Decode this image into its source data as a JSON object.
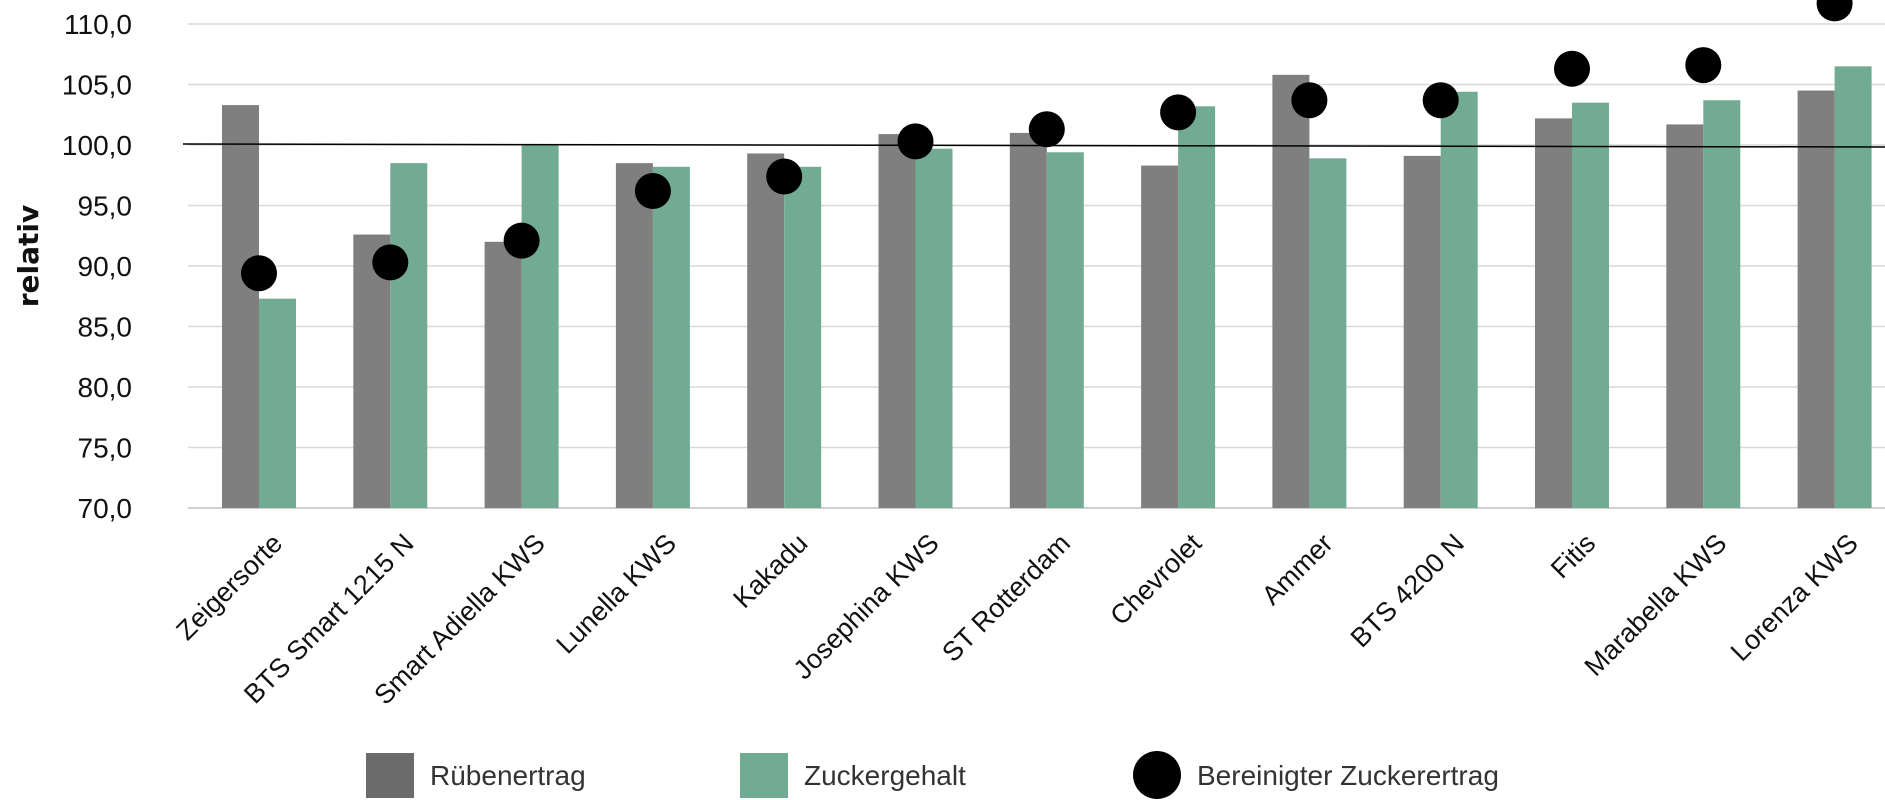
{
  "chart_data": {
    "type": "bar",
    "ylabel": "relativ",
    "ylim": [
      70,
      110
    ],
    "ytick_step": 5,
    "yticks": [
      "70,0",
      "75,0",
      "80,0",
      "85,0",
      "90,0",
      "95,0",
      "100,0",
      "105,0",
      "110,0"
    ],
    "grid": true,
    "reference_line": 100,
    "legend_position": "bottom",
    "categories": [
      "Zeigersorte",
      "BTS Smart 1215 N",
      "Smart Adiella KWS",
      "Lunella KWS",
      "Kakadu",
      "Josephina KWS",
      "ST Rotterdam",
      "Chevrolet",
      "Ammer",
      "BTS 4200 N",
      "Fitis",
      "Marabella KWS",
      "Lorenza KWS"
    ],
    "series": [
      {
        "name": "Rübenertrag",
        "kind": "bar",
        "color": "#7f7f7f",
        "values": [
          103.3,
          92.6,
          92.0,
          98.5,
          99.3,
          100.9,
          101.0,
          98.3,
          105.8,
          99.1,
          102.2,
          101.7,
          104.5
        ]
      },
      {
        "name": "Zuckergehalt",
        "kind": "bar",
        "color": "#72ab93",
        "values": [
          87.3,
          98.5,
          100.0,
          98.2,
          98.2,
          99.7,
          99.4,
          103.2,
          98.9,
          104.4,
          103.5,
          103.7,
          106.5
        ]
      },
      {
        "name": "Bereinigter Zuckerertrag",
        "kind": "point",
        "color": "#000000",
        "values": [
          89.4,
          90.3,
          92.1,
          96.2,
          97.4,
          100.3,
          101.3,
          102.7,
          103.7,
          103.7,
          106.3,
          106.6,
          111.7
        ]
      }
    ]
  }
}
